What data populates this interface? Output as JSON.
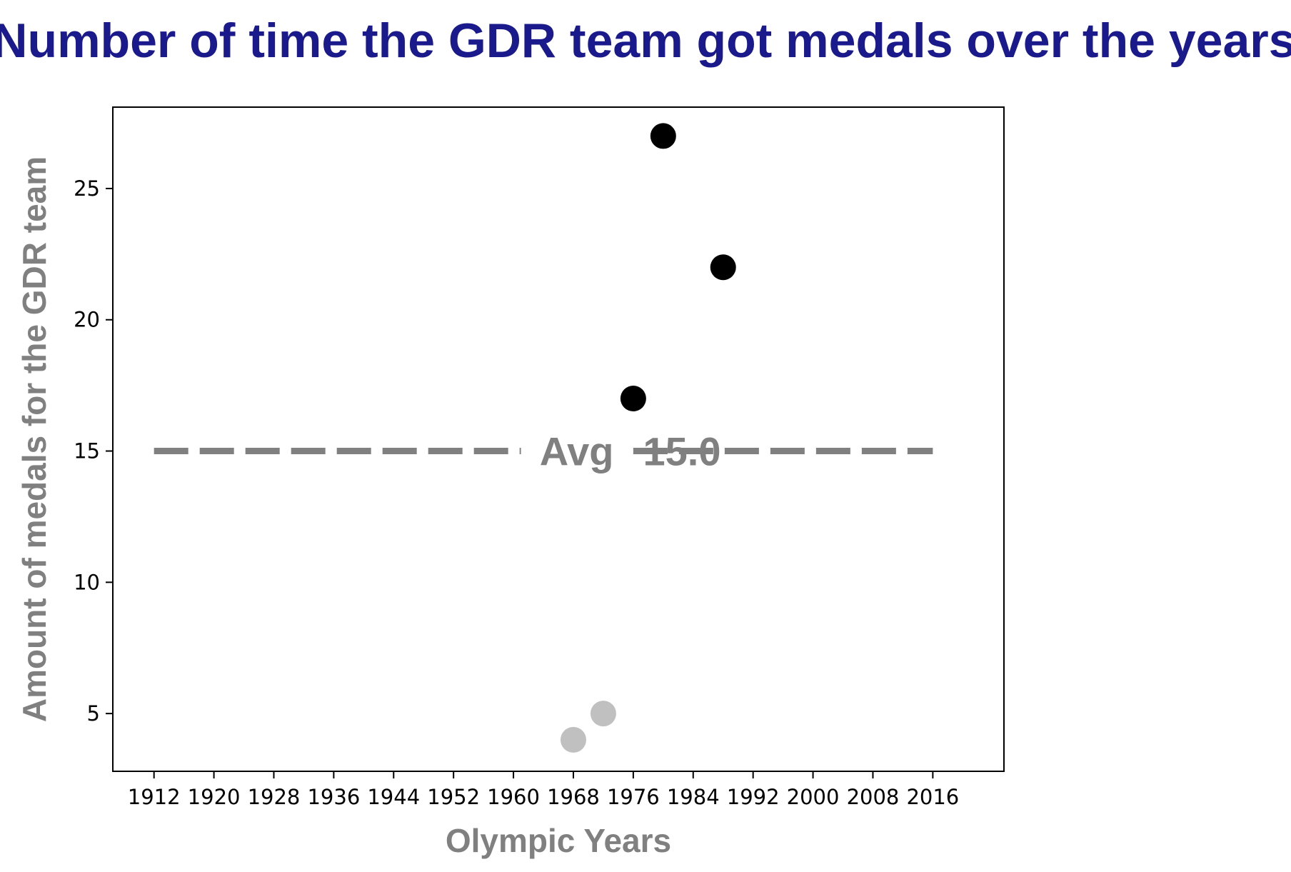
{
  "chart_data": {
    "type": "scatter",
    "title": "Number of time the GDR team got medals over the years",
    "xlabel": "Olympic Years",
    "ylabel": "Amount of medals for the GDR team",
    "x_ticks": [
      1912,
      1920,
      1928,
      1936,
      1944,
      1952,
      1960,
      1968,
      1976,
      1984,
      1992,
      2000,
      2008,
      2016
    ],
    "y_ticks": [
      5,
      10,
      15,
      20,
      25
    ],
    "xlim": [
      1906.5,
      2025.5
    ],
    "ylim": [
      2.8,
      28.1
    ],
    "grid": false,
    "points": [
      {
        "x": 1968,
        "y": 4,
        "color": "#c0c0c0"
      },
      {
        "x": 1972,
        "y": 5,
        "color": "#c0c0c0"
      },
      {
        "x": 1976,
        "y": 17,
        "color": "#000000"
      },
      {
        "x": 1980,
        "y": 27,
        "color": "#000000"
      },
      {
        "x": 1988,
        "y": 22,
        "color": "#000000"
      }
    ],
    "average": {
      "value": 15.0,
      "label_prefix": "Avg",
      "label_value": "15.0",
      "x_range": [
        1912,
        2016
      ],
      "line_color": "#808080"
    },
    "colors": {
      "title": "#1a1a8c",
      "axis_label": "#808080",
      "above_average": "#000000",
      "below_average": "#c0c0c0"
    }
  }
}
